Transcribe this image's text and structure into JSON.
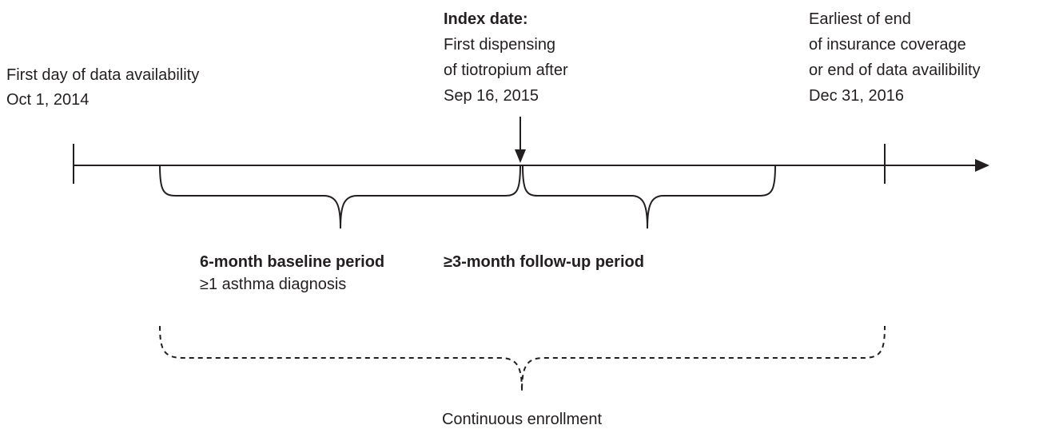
{
  "start": {
    "lines": [
      "First day of data availability",
      "Oct 1, 2014"
    ]
  },
  "index_date": {
    "title": "Index date:",
    "lines": [
      "First dispensing",
      "of tiotropium after",
      "Sep 16, 2015"
    ]
  },
  "end": {
    "lines": [
      "Earliest of end",
      "of insurance coverage",
      "or end of data availibility",
      "Dec 31, 2016"
    ]
  },
  "baseline": {
    "title": "6-month baseline period",
    "lines": [
      "≥1 asthma diagnosis"
    ]
  },
  "follow_up": {
    "title": "≥3-month follow-up period"
  },
  "enrollment": {
    "label": "Continuous enrollment"
  }
}
